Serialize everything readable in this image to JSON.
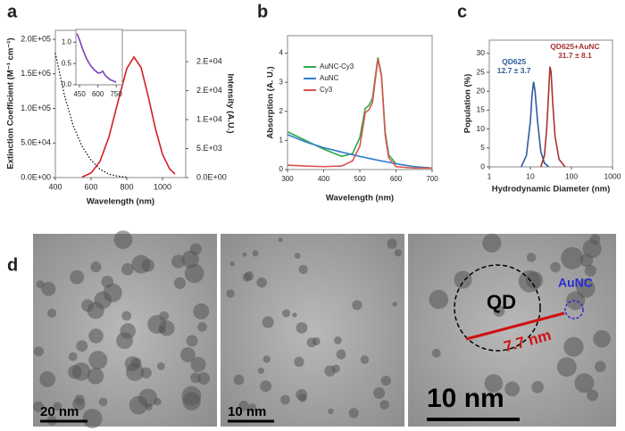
{
  "panel_labels": [
    "a",
    "b",
    "c",
    "d"
  ],
  "chart_data": [
    {
      "type": "line",
      "x_label": "Wavelength (nm)",
      "y_label": "Extinction Coefficient (M⁻¹ cm⁻¹)",
      "y2_label": "Intensity (A.U.)",
      "xlim": [
        400,
        1130
      ],
      "xticks": [
        400,
        600,
        800,
        1000
      ],
      "ylim": [
        0,
        213000
      ],
      "yticks": [
        {
          "value": 0,
          "label": "0.0E+00"
        },
        {
          "value": 50000,
          "label": "5.0E+04"
        },
        {
          "value": 100000,
          "label": "1.0E+05"
        },
        {
          "value": 150000,
          "label": "1.5E+05"
        },
        {
          "value": 200000,
          "label": "2.0E+05"
        }
      ],
      "y2lim": [
        0,
        25400
      ],
      "y2ticks": [
        {
          "value": 0,
          "label": "0.0E+00"
        },
        {
          "value": 5000,
          "label": "5.E+03"
        },
        {
          "value": 10000,
          "label": "1.E+04"
        },
        {
          "value": 15000,
          "label": "2.E+04"
        },
        {
          "value": 20000,
          "label": "2.E+04"
        }
      ],
      "series": [
        {
          "color": "#111111",
          "line_style": "dotted",
          "x": [
            400,
            450,
            500,
            550,
            600,
            650,
            700,
            750,
            800
          ],
          "values": [
            180000,
            120000,
            75000,
            45000,
            25000,
            12000,
            5000,
            2000,
            500
          ]
        },
        {
          "color": "#d42020",
          "axis": "y2",
          "x": [
            550,
            600,
            650,
            700,
            750,
            800,
            840,
            880,
            920,
            960,
            1000,
            1040,
            1070
          ],
          "values": [
            100,
            800,
            2800,
            7000,
            13000,
            18800,
            20800,
            19000,
            14000,
            8500,
            4000,
            1500,
            600
          ]
        }
      ]
    },
    {
      "type": "line",
      "xlim": [
        420,
        800
      ],
      "xticks": [
        450,
        600,
        750
      ],
      "ylim": [
        0,
        1.3
      ],
      "yticks": [
        {
          "value": 0,
          "label": "0.0"
        },
        {
          "value": 0.5,
          "label": "0.5"
        },
        {
          "value": 1,
          "label": "1.0"
        }
      ],
      "series": [
        {
          "color": "#7b3fb8",
          "x": [
            430,
            450,
            480,
            510,
            540,
            570,
            600,
            620,
            640,
            660,
            700,
            750
          ],
          "values": [
            1.2,
            1.05,
            0.8,
            0.6,
            0.45,
            0.35,
            0.28,
            0.28,
            0.32,
            0.22,
            0.12,
            0.06
          ]
        }
      ]
    },
    {
      "type": "line",
      "x_label": "Wavelength (nm)",
      "y_label": "Absorption (A. U.)",
      "legend": "upper left",
      "xlim": [
        300,
        700
      ],
      "xticks": [
        300,
        400,
        500,
        600,
        700
      ],
      "ylim": [
        0,
        4.6
      ],
      "yticks": [
        0,
        1,
        2,
        3,
        4
      ],
      "series": [
        {
          "name": "AuNC-Cy3",
          "color": "#2eaa4a",
          "x": [
            300,
            350,
            400,
            450,
            480,
            500,
            515,
            525,
            535,
            550,
            560,
            570,
            580,
            600,
            650,
            700
          ],
          "values": [
            1.3,
            1.0,
            0.7,
            0.45,
            0.55,
            1.1,
            2.1,
            2.2,
            2.45,
            3.85,
            3.25,
            1.3,
            0.5,
            0.2,
            0.1,
            0.05
          ]
        },
        {
          "name": "AuNC",
          "color": "#2f7fd0",
          "x": [
            300,
            350,
            400,
            450,
            500,
            550,
            600,
            650,
            700
          ],
          "values": [
            1.2,
            0.95,
            0.75,
            0.6,
            0.45,
            0.32,
            0.2,
            0.1,
            0.05
          ]
        },
        {
          "name": "Cy3",
          "color": "#d9534f",
          "x": [
            300,
            350,
            400,
            450,
            480,
            500,
            515,
            525,
            535,
            550,
            560,
            570,
            580,
            600,
            650,
            700
          ],
          "values": [
            0.15,
            0.12,
            0.1,
            0.12,
            0.3,
            0.8,
            1.95,
            2.05,
            2.3,
            3.8,
            3.2,
            1.2,
            0.4,
            0.1,
            0.05,
            0.05
          ]
        }
      ]
    },
    {
      "type": "line",
      "x_label": "Hydrodynamic Diameter (nm)",
      "y_label": "Population (%)",
      "xscale": "log",
      "xlim": [
        1,
        1000
      ],
      "xticks": [
        1,
        10,
        100,
        1000
      ],
      "ylim": [
        0,
        33.5
      ],
      "yticks": [
        0,
        5,
        10,
        15,
        20,
        25,
        30
      ],
      "series": [
        {
          "name": "QD625",
          "label": "12.7 ± 3.7",
          "color": "#2e5c9e",
          "x": [
            6,
            8,
            10,
            11,
            12,
            13,
            15,
            18,
            22,
            28
          ],
          "values": [
            0,
            3,
            12,
            19,
            22.5,
            20,
            12,
            4,
            1,
            0
          ]
        },
        {
          "name": "QD625+AuNC",
          "label": "31.7 ± 8.1",
          "color": "#a83232",
          "x": [
            18,
            22,
            25,
            28,
            30,
            32,
            35,
            40,
            50,
            70
          ],
          "values": [
            0,
            3,
            10,
            20,
            26.5,
            25,
            17,
            8,
            2,
            0
          ]
        }
      ]
    }
  ],
  "micrographs": {
    "scale_bars": [
      "20 nm",
      "10 nm",
      "10 nm"
    ],
    "labels": [
      "QD",
      "AuNC",
      "7.7 nm"
    ]
  }
}
